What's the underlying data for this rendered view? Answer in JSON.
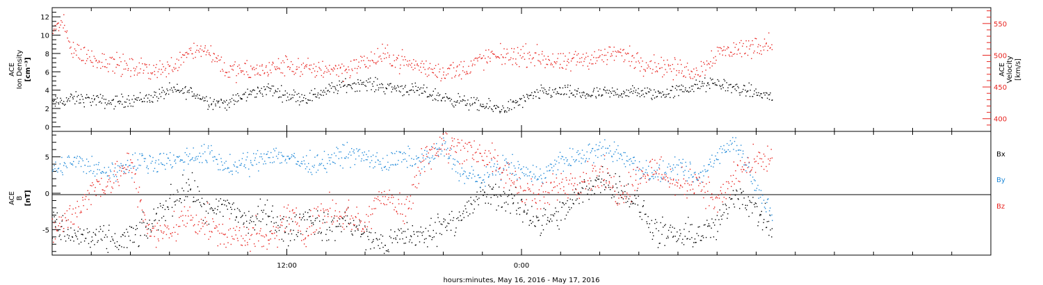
{
  "colors": {
    "black": "#000000",
    "red": "#e8231f",
    "blue": "#1e88d8"
  },
  "xaxis": {
    "label": "hours:minutes, May 16, 2016 - May 17, 2016",
    "range_hours": [
      0,
      48
    ],
    "labeled_ticks": [
      {
        "hour": 12,
        "label": "12:00"
      },
      {
        "hour": 24,
        "label": "0:00"
      }
    ],
    "minor_tick_step_hours": 2
  },
  "chart_data": [
    {
      "type": "scatter",
      "panel": "top",
      "ylabel_left": [
        "ACE",
        "Ion Density",
        "[cm⁻³]"
      ],
      "ylabel_right": [
        "ACE",
        "Velocity",
        "[km/s]"
      ],
      "ylim_left": [
        -0.5,
        13
      ],
      "yticks_left": [
        "0",
        "2",
        "4",
        "6",
        "8",
        "10",
        "12"
      ],
      "ylim_right": [
        380,
        575
      ],
      "yticks_right": [
        "400",
        "450",
        "500",
        "550"
      ],
      "data_end_hour": 36.8,
      "series": [
        {
          "color": "black",
          "axis": "left",
          "x": [
            0,
            1,
            2,
            3,
            4,
            5,
            6,
            7,
            8,
            9,
            10,
            11,
            12,
            13,
            14,
            15,
            16,
            17,
            18,
            19,
            20,
            21,
            22,
            23,
            24,
            25,
            26,
            27,
            28,
            29,
            30,
            31,
            32,
            33,
            34,
            35,
            36.8
          ],
          "y": [
            2.6,
            3.1,
            3.0,
            2.7,
            3.0,
            3.2,
            4.0,
            3.9,
            2.8,
            2.6,
            3.6,
            4.2,
            3.5,
            3.2,
            4.0,
            4.6,
            4.8,
            4.4,
            4.2,
            3.8,
            3.2,
            2.8,
            2.3,
            2.0,
            2.8,
            3.8,
            3.9,
            3.6,
            3.6,
            3.8,
            3.8,
            3.6,
            4.0,
            4.5,
            4.8,
            4.2,
            3.3
          ],
          "spread": 0.8
        },
        {
          "color": "red",
          "axis": "right",
          "x": [
            0,
            0.5,
            1,
            2,
            3,
            4,
            5,
            6,
            7,
            8,
            9,
            10,
            11,
            12,
            13,
            14,
            15,
            16,
            17,
            18,
            19,
            20,
            21,
            22,
            23,
            24,
            25,
            26,
            27,
            28,
            29,
            30,
            31,
            32,
            33,
            34,
            35,
            36.8
          ],
          "y": [
            540,
            550,
            510,
            495,
            490,
            480,
            478,
            480,
            510,
            508,
            475,
            475,
            478,
            485,
            478,
            480,
            478,
            490,
            500,
            490,
            480,
            475,
            478,
            495,
            500,
            500,
            498,
            485,
            495,
            498,
            505,
            490,
            485,
            478,
            475,
            505,
            510,
            520
          ],
          "spread": 18
        }
      ]
    },
    {
      "type": "scatter",
      "panel": "bottom",
      "ylabel_left": [
        "ACE",
        "B",
        "[nT]"
      ],
      "ylim": [
        -8.5,
        8.5
      ],
      "yticks": [
        "-5",
        "0",
        "5"
      ],
      "zero_line": true,
      "data_end_hour": 36.8,
      "legend": [
        {
          "label": "Bx",
          "color": "black"
        },
        {
          "label": "By",
          "color": "blue"
        },
        {
          "label": "Bz",
          "color": "red"
        }
      ],
      "series": [
        {
          "name": "Bx",
          "color": "black",
          "x": [
            0,
            1,
            2,
            3,
            4,
            5,
            6,
            7,
            8,
            9,
            10,
            11,
            12,
            13,
            14,
            15,
            16,
            17,
            18,
            19,
            20,
            21,
            22,
            23,
            24,
            25,
            26,
            27,
            28,
            29,
            30,
            31,
            32,
            33,
            34,
            35,
            36.8
          ],
          "y": [
            -4.0,
            -5.8,
            -6.0,
            -6.8,
            -6.0,
            -4.5,
            -1.0,
            1.0,
            -3.0,
            -1.5,
            -4.0,
            -2.5,
            -5.5,
            -3.0,
            -5.0,
            -3.5,
            -6.0,
            -7.0,
            -5.5,
            -6.0,
            -4.0,
            -3.0,
            0.0,
            -0.5,
            -2.0,
            -4.0,
            -3.0,
            0.0,
            2.0,
            1.0,
            -2.0,
            -5.5,
            -6.0,
            -5.5,
            -4.5,
            0.5,
            -5.0
          ],
          "spread": 2.2
        },
        {
          "name": "By",
          "color": "blue",
          "x": [
            0,
            1,
            2,
            3,
            4,
            5,
            6,
            7,
            8,
            9,
            10,
            11,
            12,
            13,
            14,
            15,
            16,
            17,
            18,
            19,
            20,
            21,
            22,
            23,
            24,
            25,
            26,
            27,
            28,
            29,
            30,
            31,
            32,
            33,
            34,
            35,
            36.8
          ],
          "y": [
            3.0,
            4.5,
            3.5,
            3.0,
            4.0,
            4.5,
            4.5,
            5.0,
            5.5,
            3.5,
            4.0,
            5.5,
            5.0,
            4.0,
            4.5,
            5.5,
            5.0,
            4.0,
            5.0,
            4.5,
            6.5,
            2.5,
            2.0,
            4.0,
            3.0,
            2.5,
            4.5,
            5.0,
            6.0,
            5.5,
            3.5,
            2.5,
            3.5,
            2.0,
            5.5,
            7.0,
            -3.5
          ],
          "spread": 1.6
        },
        {
          "name": "Bz",
          "color": "red",
          "x": [
            0,
            1,
            2,
            3,
            4,
            5,
            6,
            7,
            8,
            9,
            10,
            11,
            12,
            13,
            14,
            15,
            16,
            17,
            18,
            19,
            20,
            21,
            22,
            23,
            24,
            25,
            26,
            27,
            28,
            29,
            30,
            31,
            32,
            33,
            34,
            35,
            36.8
          ],
          "y": [
            -5.0,
            -3.0,
            0.5,
            2.0,
            4.0,
            -6.0,
            -5.0,
            -3.0,
            -4.5,
            -6.0,
            -5.5,
            -7.0,
            -3.0,
            -5.0,
            -2.0,
            -3.0,
            -4.0,
            0.5,
            -3.0,
            5.5,
            6.5,
            6.5,
            5.5,
            3.0,
            1.0,
            -1.0,
            1.5,
            2.0,
            3.0,
            0.0,
            2.5,
            3.5,
            1.0,
            2.0,
            -1.5,
            3.0,
            5.0
          ],
          "spread": 2.4
        }
      ]
    }
  ]
}
